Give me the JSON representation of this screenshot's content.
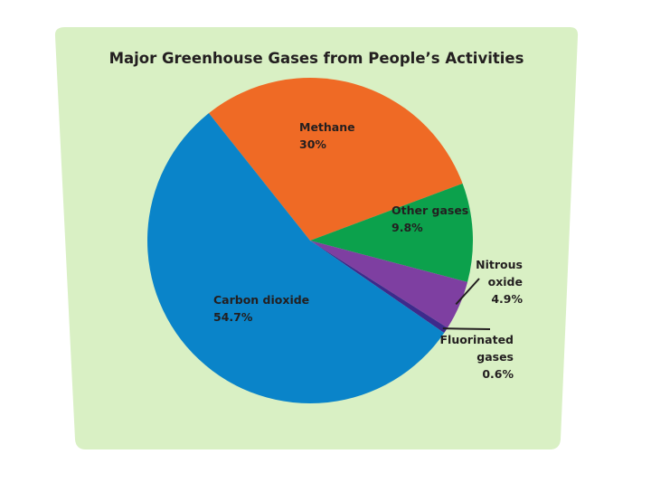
{
  "chart_data": {
    "type": "pie",
    "title": "Major Greenhouse Gases from People’s Activities",
    "slices": [
      {
        "label": "Carbon dioxide",
        "value": 54.7,
        "value_label": "54.7%",
        "color": "#0a84c9"
      },
      {
        "label": "Methane",
        "value": 30,
        "value_label": "30%",
        "color": "#ef6a25"
      },
      {
        "label": "Other gases",
        "value": 9.8,
        "value_label": "9.8%",
        "color": "#0ca14c"
      },
      {
        "label": "Nitrous oxide",
        "value": 4.9,
        "value_label": "4.9%",
        "color": "#7e3fa1"
      },
      {
        "label": "Fluorinated gases",
        "value": 0.6,
        "value_label": "0.6%",
        "color": "#3e2a8c"
      }
    ],
    "background_color": "#d9f0c4"
  }
}
